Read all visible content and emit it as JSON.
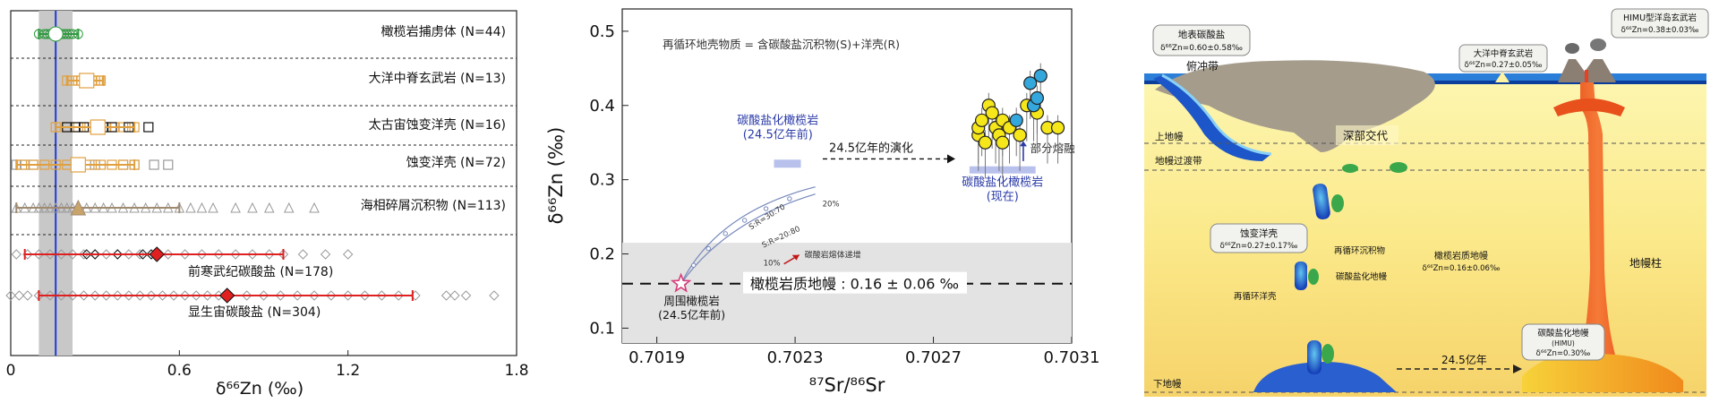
{
  "chart_data": [
    {
      "type": "scatter",
      "panel": "a",
      "xlabel": "δ⁶⁶Zn (‰)",
      "xlim": [
        0,
        1.8
      ],
      "xticks": [
        "0",
        "0.6",
        "1.2",
        "1.8"
      ],
      "reference_line": 0.16,
      "reference_band": [
        0.1,
        0.22
      ],
      "groups": [
        {
          "name": "橄榄岩捕虏体 (N=44)",
          "color": "#2e9a3e",
          "marker": "circle",
          "points": [
            0.1,
            0.12,
            0.13,
            0.14,
            0.16,
            0.17,
            0.18,
            0.19,
            0.2,
            0.21,
            0.22,
            0.24
          ],
          "mean": 0.16,
          "range": [
            0.1,
            0.24
          ]
        },
        {
          "name": "大洋中脊玄武岩 (N=13)",
          "color": "#e0a040",
          "marker": "square",
          "points": [
            0.2,
            0.22,
            0.24,
            0.25,
            0.27,
            0.28,
            0.29,
            0.3,
            0.31,
            0.32
          ],
          "mean": 0.27,
          "range": [
            0.2,
            0.33
          ]
        },
        {
          "name": "太古宙蚀变洋壳 (N=16)",
          "color": "#e0a040",
          "marker": "square",
          "extra_black": [
            0.2,
            0.23,
            0.26,
            0.33,
            0.36,
            0.42,
            0.49
          ],
          "points": [
            0.16,
            0.2,
            0.24,
            0.28,
            0.31,
            0.34,
            0.37,
            0.4,
            0.44
          ],
          "mean": 0.31,
          "range": [
            0.16,
            0.44
          ]
        },
        {
          "name": "蚀变洋壳 (N=72)",
          "color": "#e0a040",
          "marker": "square",
          "extra_gray": [
            0.02,
            0.05,
            0.08,
            0.3,
            0.4,
            0.44,
            0.51,
            0.56
          ],
          "points": [
            0.04,
            0.08,
            0.12,
            0.16,
            0.2,
            0.24,
            0.28,
            0.32,
            0.36,
            0.4,
            0.44
          ],
          "mean": 0.24,
          "range": [
            0.02,
            0.44
          ]
        },
        {
          "name": "海相碎屑沉积物 (N=113)",
          "color": "#a08a70",
          "marker": "triangle",
          "points": [
            0.02,
            0.05,
            0.08,
            0.1,
            0.12,
            0.14,
            0.16,
            0.18,
            0.2,
            0.22,
            0.24,
            0.27,
            0.3,
            0.33,
            0.36,
            0.4,
            0.44,
            0.48,
            0.52,
            0.56,
            0.6,
            0.64,
            0.68,
            0.72,
            0.8,
            0.86,
            0.92,
            0.99,
            1.08
          ],
          "mean": 0.24,
          "range": [
            0.02,
            0.6
          ]
        },
        {
          "name": "前寒武纪碳酸盐 (N=178)",
          "color": "#e02020",
          "marker": "diamond",
          "extra_black": [
            0.27,
            0.3,
            0.38,
            0.47,
            0.5
          ],
          "points": [
            0.02,
            0.06,
            0.1,
            0.14,
            0.18,
            0.22,
            0.26,
            0.3,
            0.34,
            0.38,
            0.42,
            0.46,
            0.5,
            0.56,
            0.62,
            0.68,
            0.74,
            0.8,
            0.86,
            0.92,
            0.97,
            1.04,
            1.12,
            1.2
          ],
          "mean": 0.52,
          "range": [
            0.05,
            0.97
          ]
        },
        {
          "name": "显生宙碳酸盐 (N=304)",
          "color": "#e02020",
          "marker": "diamond",
          "points": [
            0.0,
            0.03,
            0.06,
            0.1,
            0.14,
            0.18,
            0.22,
            0.26,
            0.3,
            0.34,
            0.38,
            0.42,
            0.46,
            0.5,
            0.54,
            0.58,
            0.62,
            0.66,
            0.7,
            0.74,
            0.78,
            0.84,
            0.9,
            0.96,
            1.02,
            1.08,
            1.14,
            1.2,
            1.26,
            1.32,
            1.38,
            1.44,
            1.55,
            1.58,
            1.62,
            1.72
          ],
          "mean": 0.77,
          "range": [
            0.1,
            1.43
          ]
        }
      ]
    },
    {
      "type": "scatter",
      "panel": "b",
      "xlabel": "⁸⁷Sr/⁸⁶Sr",
      "ylabel": "δ⁶⁶Zn (‰)",
      "xlim": [
        0.7018,
        0.7031
      ],
      "ylim": [
        0.08,
        0.53
      ],
      "xticks": [
        "0.7019",
        "0.7023",
        "0.7027",
        "0.7031"
      ],
      "yticks": [
        "0.1",
        "0.2",
        "0.3",
        "0.4",
        "0.5"
      ],
      "gray_band": [
        0.08,
        0.215
      ],
      "mantle_line": 0.16,
      "mantle_label": "橄榄岩质地幔 : 0.16 ± 0.06 ‰",
      "top_note": "再循环地壳物质 = 含碳酸盐沉积物(S)+洋壳(R)",
      "start_label": "周围橄榄岩\n(24.5亿年前)",
      "start_point": {
        "x": 0.70197,
        "y": 0.16
      },
      "carb_old_label": "碳酸盐化橄榄岩\n(24.5亿年前)",
      "evolution_label": "24.5亿年的演化",
      "partial_melt_label": "部分熔融",
      "carb_now_label": "碳酸盐化橄榄岩\n(现在)",
      "curve_labels": [
        "S:R=30:70",
        "S:R=20:80",
        "20%",
        "10%",
        "碳酸岩熔体递增"
      ],
      "yellow_points": [
        {
          "x": 0.70283,
          "y": 0.36
        },
        {
          "x": 0.70283,
          "y": 0.37
        },
        {
          "x": 0.70284,
          "y": 0.38
        },
        {
          "x": 0.70285,
          "y": 0.35
        },
        {
          "x": 0.70286,
          "y": 0.4
        },
        {
          "x": 0.70287,
          "y": 0.39
        },
        {
          "x": 0.70288,
          "y": 0.37
        },
        {
          "x": 0.70289,
          "y": 0.36
        },
        {
          "x": 0.7029,
          "y": 0.35
        },
        {
          "x": 0.7029,
          "y": 0.38
        },
        {
          "x": 0.70292,
          "y": 0.37
        },
        {
          "x": 0.70295,
          "y": 0.36
        },
        {
          "x": 0.70297,
          "y": 0.4
        },
        {
          "x": 0.703,
          "y": 0.39
        },
        {
          "x": 0.70303,
          "y": 0.37
        },
        {
          "x": 0.70306,
          "y": 0.37
        }
      ],
      "blue_points": [
        {
          "x": 0.70294,
          "y": 0.38
        },
        {
          "x": 0.70298,
          "y": 0.43
        },
        {
          "x": 0.70299,
          "y": 0.4
        },
        {
          "x": 0.703,
          "y": 0.41
        },
        {
          "x": 0.70301,
          "y": 0.44
        }
      ]
    }
  ],
  "schematic": {
    "labels": {
      "surface_carb": "地表碳酸盐",
      "surface_carb_val": "δ⁶⁶Zn=0.60±0.58‰",
      "subduction": "俯冲带",
      "mor": "大洋中脊玄武岩",
      "mor_val": "δ⁶⁶Zn=0.27±0.05‰",
      "himu": "HIMU型洋岛玄武岩",
      "himu_val": "δ⁶⁶Zn=0.38±0.03‰",
      "upper_mantle": "上地幔",
      "transition": "地幔过渡带",
      "deep_interaction": "深部交代",
      "altered_crust": "蚀变洋壳",
      "altered_crust_val": "δ⁶⁶Zn=0.27±0.17‰",
      "recycled_sed": "再循环沉积物",
      "carb_mantle": "碳酸盐化地幔",
      "recycled_crust": "再循环洋壳",
      "peridotite_mantle": "橄榄岩质地幔",
      "peridotite_mantle_val": "δ⁶⁶Zn=0.16±0.06‰",
      "plume": "地幔柱",
      "himu_mantle": "碳酸盐化地幔",
      "himu_mantle_sub": "(HIMU)",
      "himu_mantle_val": "δ⁶⁶Zn=0.30‰",
      "time": "24.5亿年",
      "lower_mantle": "下地幔"
    }
  }
}
